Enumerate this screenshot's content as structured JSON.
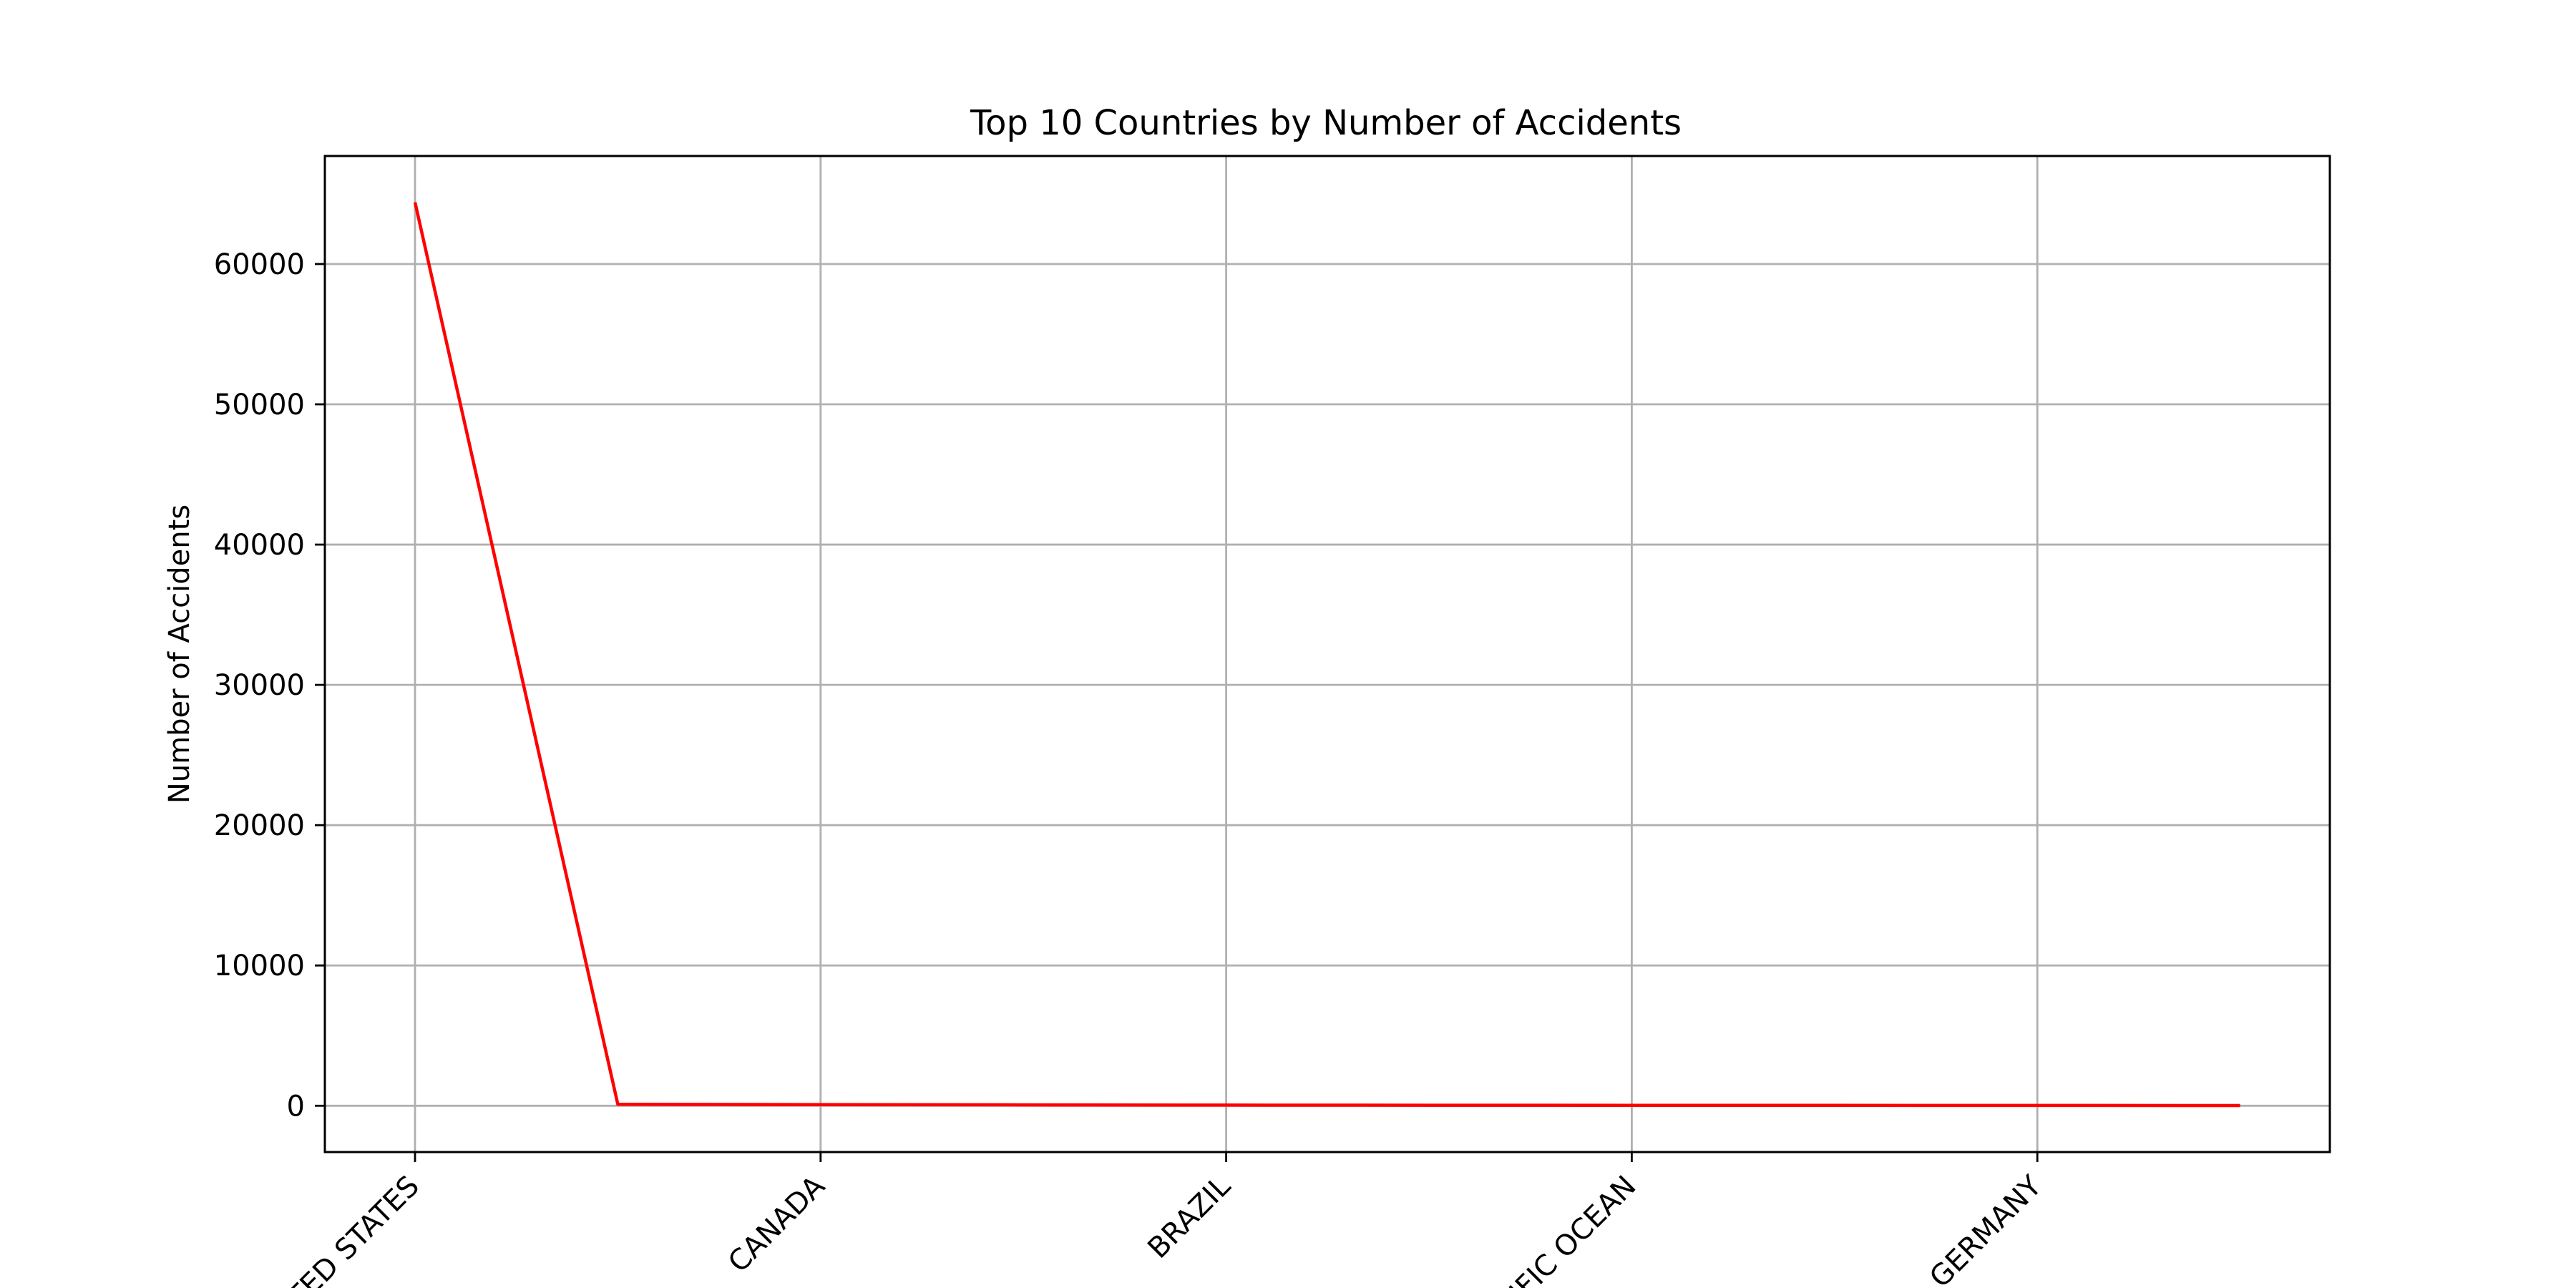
{
  "chart_data": {
    "type": "line",
    "title": "Top 10 Countries by Number of Accidents",
    "xlabel": "",
    "ylabel": "Number of Accidents",
    "categories": [
      "UNITED STATES",
      "",
      "CANADA",
      "",
      "BRAZIL",
      "",
      "PACIFIC OCEAN",
      "",
      "GERMANY",
      ""
    ],
    "x_tick_labels": [
      "UNITED STATES",
      "CANADA",
      "BRAZIL",
      "PACIFIC OCEAN",
      "GERMANY"
    ],
    "series": [
      {
        "values": [
          64400,
          100,
          80,
          60,
          45,
          35,
          30,
          25,
          20,
          15
        ]
      }
    ],
    "y_ticks": [
      0,
      10000,
      20000,
      30000,
      40000,
      50000,
      60000
    ],
    "ylim": [
      -3300,
      67700
    ],
    "grid": true,
    "colors": {
      "line": "#ff0000",
      "grid": "#b0b0b0",
      "frame": "#000000"
    }
  }
}
